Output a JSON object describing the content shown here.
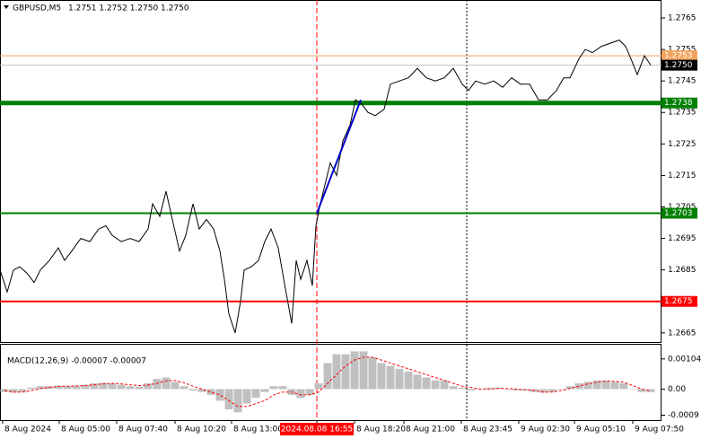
{
  "chart_data": {
    "type": "line",
    "title": "GBPUSD,M5",
    "ohlc": "1.2751 1.2752 1.2750 1.2750",
    "color": "#000000",
    "x": [
      0,
      4,
      7.5,
      11,
      15,
      19,
      22.5,
      27.5,
      32.5,
      36,
      40,
      45,
      50,
      55,
      59,
      62.5,
      67.5,
      72.5,
      77.5,
      82.5,
      85,
      89,
      92.5,
      96,
      100,
      103.5,
      107.5,
      111,
      115,
      119,
      122.5,
      125,
      127.5,
      131,
      134,
      136,
      140,
      144,
      147.5,
      151,
      155,
      159,
      162.5,
      165,
      167.5,
      171,
      174,
      176,
      178,
      181,
      184,
      187.5,
      191,
      195,
      198,
      201,
      205,
      209,
      214,
      217.5,
      222.5,
      227.5,
      232.5,
      237.5,
      242.5,
      247.5,
      252.5,
      257.5,
      261,
      265,
      270,
      275,
      280,
      285,
      290,
      295,
      300,
      305,
      310,
      314,
      317.5,
      322.5,
      326,
      330,
      335,
      340,
      345,
      348.5,
      351.5,
      355,
      359,
      362.5
    ],
    "values": [
      1.2685,
      1.2678,
      1.2685,
      1.2686,
      1.2684,
      1.2681,
      1.2685,
      1.2688,
      1.2692,
      1.2688,
      1.2691,
      1.2695,
      1.2694,
      1.2698,
      1.2699,
      1.2696,
      1.2694,
      1.2695,
      1.2694,
      1.2698,
      1.2706,
      1.2702,
      1.271,
      1.2701,
      1.2691,
      1.2696,
      1.2706,
      1.2698,
      1.2701,
      1.2698,
      1.2691,
      1.2682,
      1.2671,
      1.2665,
      1.2675,
      1.2685,
      1.2686,
      1.2688,
      1.2694,
      1.2698,
      1.2692,
      1.2679,
      1.2668,
      1.2688,
      1.2682,
      1.2688,
      1.268,
      1.2699,
      1.2705,
      1.2712,
      1.2719,
      1.2715,
      1.2726,
      1.2731,
      1.2739,
      1.2738,
      1.2735,
      1.2734,
      1.2736,
      1.2744,
      1.2745,
      1.2746,
      1.2749,
      1.2746,
      1.2745,
      1.2746,
      1.2749,
      1.2744,
      1.2742,
      1.2745,
      1.2744,
      1.2745,
      1.2743,
      1.2746,
      1.2744,
      1.2744,
      1.2739,
      1.2739,
      1.2742,
      1.2746,
      1.2746,
      1.2752,
      1.2755,
      1.2754,
      1.2756,
      1.2757,
      1.2758,
      1.2756,
      1.2752,
      1.2747,
      1.2753,
      1.275
    ],
    "xlim": [
      0,
      368.5
    ],
    "ylim": [
      1.26621,
      1.27707
    ],
    "yticks": [
      1.2765,
      1.2755,
      1.2745,
      1.2735,
      1.2725,
      1.2715,
      1.2705,
      1.2695,
      1.2685,
      1.2675,
      1.2665
    ],
    "xticks": [
      {
        "value": 1.5,
        "label": "8 Aug 2024"
      },
      {
        "value": 33,
        "label": "8 Aug 05:00"
      },
      {
        "value": 65,
        "label": "8 Aug 07:40"
      },
      {
        "value": 97.5,
        "label": "8 Aug 10:20"
      },
      {
        "value": 129,
        "label": "8 Aug 13:00"
      },
      {
        "value": 176.5,
        "label": "2024.08.08 16:55"
      },
      {
        "value": 197.5,
        "label": "8 Aug 18:20"
      },
      {
        "value": 225,
        "label": "8 Aug 21:00"
      },
      {
        "value": 257,
        "label": "8 Aug 23:45"
      },
      {
        "value": 289,
        "label": "9 Aug 02:30"
      },
      {
        "value": 320,
        "label": "9 Aug 05:10"
      },
      {
        "value": 352.5,
        "label": "9 Aug 07:50"
      }
    ],
    "cursor_x": 176.5,
    "marker_x": 260,
    "trendline": {
      "color": "#0000cc",
      "x": [
        176.5,
        201
      ],
      "values": [
        1.2703,
        1.2739
      ]
    },
    "levels": {
      "values": [
        1.2753,
        1.275,
        1.2738,
        1.2703,
        1.2675
      ],
      "value_labels": [
        "1.2753",
        "1.2750",
        "1.2738",
        "1.2703",
        "1.2675"
      ],
      "colors": [
        "#f4a460",
        "#c0c0c0",
        "#008000",
        "#008000",
        "#ff0000"
      ],
      "box_colors": [
        "#f4a460",
        "#000000",
        "#008000",
        "#008000",
        "#ff0000"
      ],
      "widths": [
        1,
        1,
        5,
        2,
        2
      ]
    },
    "macd": {
      "title": "MACD(12,26,9) -0.00007 -0.00007",
      "hist_color": "#c0c0c0",
      "signal_color": "#ff0000",
      "x": [
        2.5,
        7.5,
        12.5,
        17.5,
        22.5,
        27.5,
        32.5,
        37.5,
        42.5,
        47.5,
        52.5,
        57.5,
        62.5,
        67.5,
        72.5,
        77.5,
        82.5,
        87.5,
        92.5,
        97.5,
        102.5,
        107.5,
        112.5,
        117.5,
        122.5,
        127.5,
        132.5,
        137.5,
        142.5,
        147.5,
        152.5,
        157.5,
        162.5,
        167.5,
        172.5,
        177.5,
        182.5,
        187.5,
        192.5,
        197.5,
        202.5,
        207.5,
        212.5,
        217.5,
        222.5,
        227.5,
        232.5,
        237.5,
        242.5,
        247.5,
        252.5,
        257.5,
        262.5,
        267.5,
        272.5,
        277.5,
        282.5,
        287.5,
        292.5,
        297.5,
        302.5,
        307.5,
        312.5,
        317.5,
        322.5,
        327.5,
        332.5,
        337.5,
        342.5,
        347.5,
        352.5,
        357.5,
        362.5
      ],
      "hist": [
        -0.0001,
        -0.00012,
        -0.0001,
        5e-05,
        0.0001,
        0.0001,
        0.00012,
        0.0001,
        0.00012,
        0.00015,
        0.0002,
        0.00022,
        0.0002,
        0.00015,
        0.0001,
        8e-05,
        0.0002,
        0.00035,
        0.0004,
        0.00025,
        0.0001,
        -5e-05,
        -0.0001,
        -0.0002,
        -0.0004,
        -0.0007,
        -0.0008,
        -0.0005,
        -0.0003,
        -0.0001,
        0.0001,
        0.0001,
        -0.0002,
        -0.0003,
        -0.0002,
        0.0002,
        0.0009,
        0.0012,
        0.0012,
        0.0013,
        0.0013,
        0.0011,
        0.0009,
        0.0008,
        0.0007,
        0.0006,
        0.0005,
        0.0004,
        0.0003,
        0.0003,
        0.0001,
        5e-05,
        -5e-05,
        0,
        5e-05,
        5e-05,
        0,
        -5e-05,
        -5e-05,
        -0.0001,
        -0.00012,
        -0.0001,
        0,
        0.0001,
        0.0002,
        0.00025,
        0.0003,
        0.0003,
        0.00025,
        0.0002,
        0,
        -0.0001,
        -0.0001
      ],
      "signal": [
        -5e-05,
        -0.0001,
        -0.0001,
        -5e-05,
        2e-05,
        6e-05,
        9e-05,
        0.0001,
        0.00011,
        0.00012,
        0.00015,
        0.00018,
        0.0002,
        0.00018,
        0.00015,
        0.00012,
        0.00014,
        0.0002,
        0.00028,
        0.0003,
        0.00022,
        0.0001,
        0,
        -0.0001,
        -0.0002,
        -0.0004,
        -0.0006,
        -0.0006,
        -0.0005,
        -0.0004,
        -0.0002,
        -0.0001,
        -0.0001,
        -0.0002,
        -0.0002,
        -0.0001,
        0.0002,
        0.0005,
        0.0008,
        0.001,
        0.0011,
        0.0011,
        0.001,
        0.0009,
        0.0008,
        0.0007,
        0.0006,
        0.0005,
        0.0004,
        0.0003,
        0.0002,
        0.0001,
        5e-05,
        0,
        0,
        2e-05,
        2e-05,
        0,
        -2e-05,
        -5e-05,
        -0.0001,
        -0.0001,
        -5e-05,
        2e-05,
        0.0001,
        0.00018,
        0.00024,
        0.00028,
        0.00027,
        0.00024,
        0.00012,
        0,
        -7e-05
      ],
      "ylim": [
        -0.00107,
        0.00156
      ],
      "yticks": [
        0.00104,
        {
          "value": 0,
          "label": "0.00"
        },
        -0.0009
      ]
    }
  }
}
